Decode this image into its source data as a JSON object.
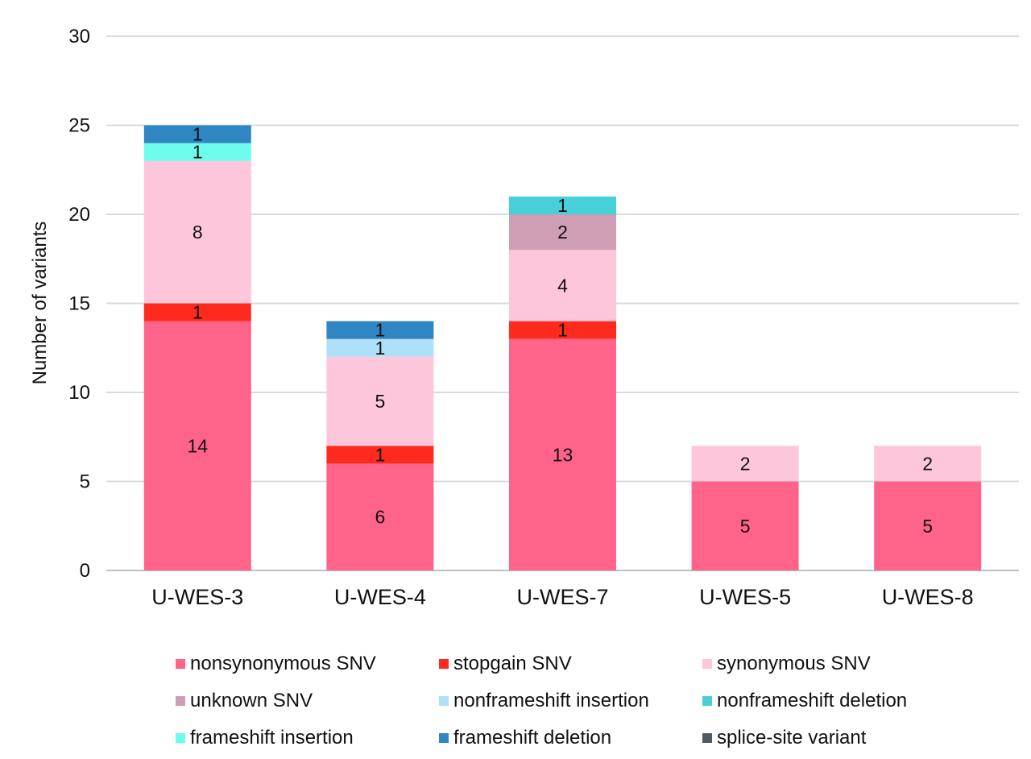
{
  "chart_data": {
    "type": "bar",
    "stacked": true,
    "title": "",
    "xlabel": "",
    "ylabel": "Number of variants",
    "ylim": [
      0,
      30
    ],
    "yticks": [
      0,
      5,
      10,
      15,
      20,
      25,
      30
    ],
    "grid": true,
    "legend_position": "bottom",
    "categories": [
      "U-WES-3",
      "U-WES-4",
      "U-WES-7",
      "U-WES-5",
      "U-WES-8"
    ],
    "series": [
      {
        "name": "nonsynonymous SNV",
        "color": "#ff638a",
        "values": [
          14,
          6,
          13,
          5,
          5
        ]
      },
      {
        "name": "stopgain SNV",
        "color": "#ff2a1e",
        "values": [
          1,
          1,
          1,
          0,
          0
        ]
      },
      {
        "name": "synonymous SNV",
        "color": "#fdc6da",
        "values": [
          8,
          5,
          4,
          2,
          2
        ]
      },
      {
        "name": "unknown SNV",
        "color": "#cf9eb4",
        "values": [
          0,
          0,
          2,
          0,
          0
        ]
      },
      {
        "name": "nonframeshift insertion",
        "color": "#aee0f8",
        "values": [
          0,
          1,
          0,
          0,
          0
        ]
      },
      {
        "name": "nonframeshift deletion",
        "color": "#48d0da",
        "values": [
          0,
          0,
          1,
          0,
          0
        ]
      },
      {
        "name": "frameshift insertion",
        "color": "#6efcec",
        "values": [
          1,
          0,
          0,
          0,
          0
        ]
      },
      {
        "name": "frameshift deletion",
        "color": "#2f86c2",
        "values": [
          1,
          1,
          0,
          0,
          0
        ]
      },
      {
        "name": "splice-site variant",
        "color": "#4f5a63",
        "values": [
          0,
          0,
          0,
          0,
          0
        ]
      }
    ]
  }
}
